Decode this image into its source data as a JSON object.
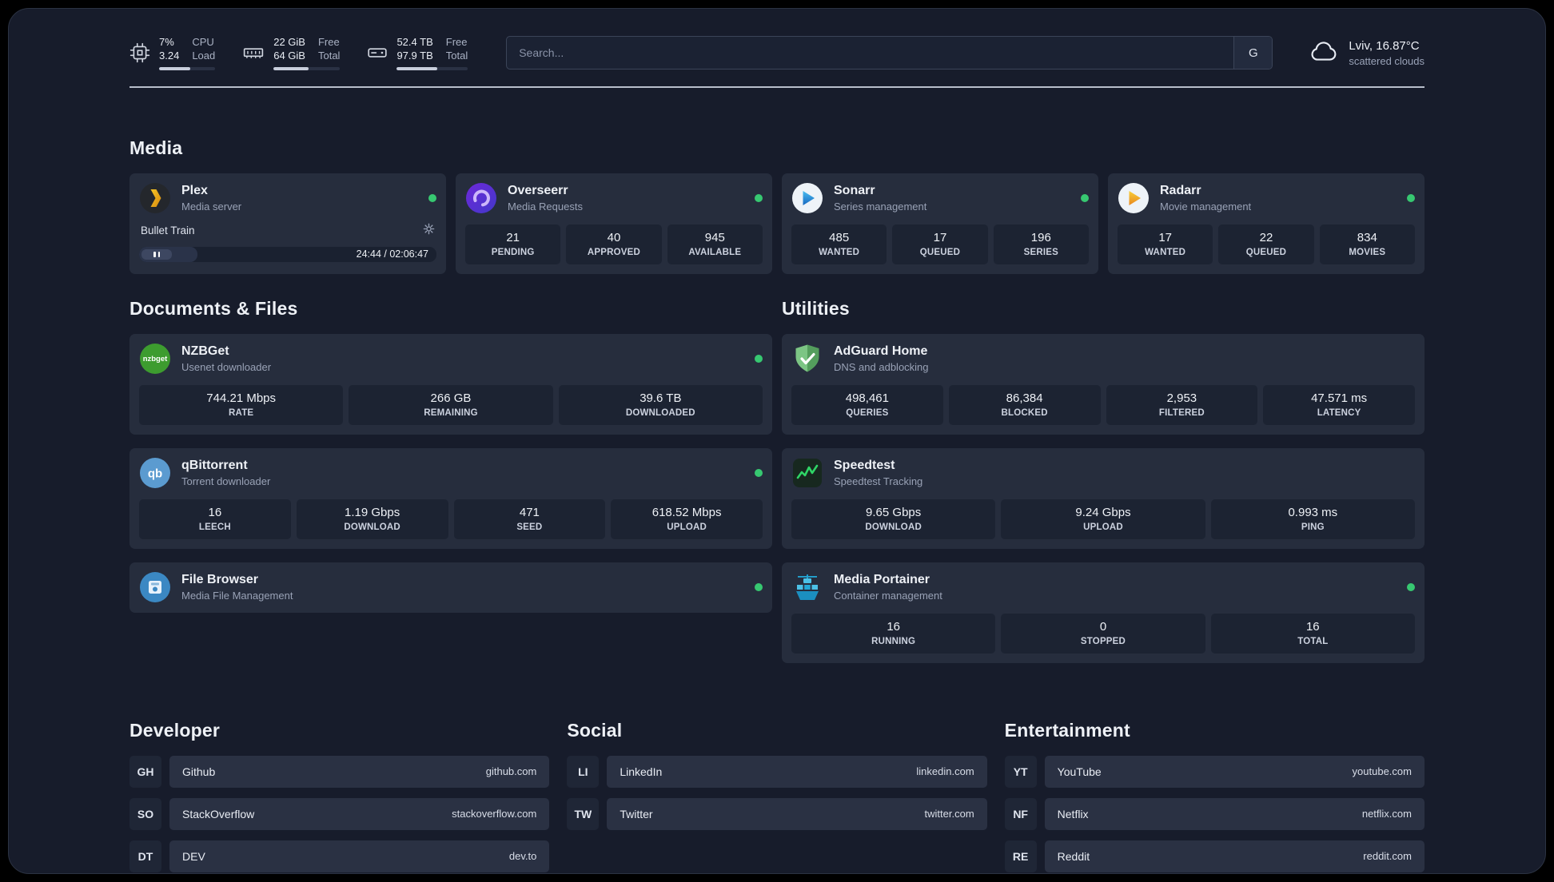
{
  "topbar": {
    "cpu": {
      "value_top": "7%",
      "value_bottom": "3.24",
      "label_top": "CPU",
      "label_bottom": "Load",
      "bar_percent": 55
    },
    "ram": {
      "value_top": "22 GiB",
      "value_bottom": "64 GiB",
      "label_top": "Free",
      "label_bottom": "Total",
      "bar_percent": 52
    },
    "disk": {
      "value_top": "52.4 TB",
      "value_bottom": "97.9 TB",
      "label_top": "Free",
      "label_bottom": "Total",
      "bar_percent": 57
    },
    "search": {
      "placeholder": "Search...",
      "button_label": "G"
    },
    "weather": {
      "location": "Lviv, 16.87°C",
      "condition": "scattered clouds"
    }
  },
  "sections": {
    "media": {
      "title": "Media",
      "cards": [
        {
          "name": "Plex",
          "subtitle": "Media server",
          "online": true,
          "player": {
            "title": "Bullet Train",
            "time": "24:44 / 02:06:47",
            "progress_percent": 19.5
          }
        },
        {
          "name": "Overseerr",
          "subtitle": "Media Requests",
          "online": true,
          "stats": [
            {
              "value": "21",
              "label": "PENDING"
            },
            {
              "value": "40",
              "label": "APPROVED"
            },
            {
              "value": "945",
              "label": "AVAILABLE"
            }
          ]
        },
        {
          "name": "Sonarr",
          "subtitle": "Series management",
          "online": true,
          "stats": [
            {
              "value": "485",
              "label": "WANTED"
            },
            {
              "value": "17",
              "label": "QUEUED"
            },
            {
              "value": "196",
              "label": "SERIES"
            }
          ]
        },
        {
          "name": "Radarr",
          "subtitle": "Movie management",
          "online": true,
          "stats": [
            {
              "value": "17",
              "label": "WANTED"
            },
            {
              "value": "22",
              "label": "QUEUED"
            },
            {
              "value": "834",
              "label": "MOVIES"
            }
          ]
        }
      ]
    },
    "documents": {
      "title": "Documents & Files",
      "cards": [
        {
          "name": "NZBGet",
          "subtitle": "Usenet downloader",
          "online": true,
          "stats": [
            {
              "value": "744.21 Mbps",
              "label": "RATE"
            },
            {
              "value": "266 GB",
              "label": "REMAINING"
            },
            {
              "value": "39.6 TB",
              "label": "DOWNLOADED"
            }
          ]
        },
        {
          "name": "qBittorrent",
          "subtitle": "Torrent downloader",
          "online": true,
          "stats": [
            {
              "value": "16",
              "label": "LEECH"
            },
            {
              "value": "1.19 Gbps",
              "label": "DOWNLOAD"
            },
            {
              "value": "471",
              "label": "SEED"
            },
            {
              "value": "618.52 Mbps",
              "label": "UPLOAD"
            }
          ]
        },
        {
          "name": "File Browser",
          "subtitle": "Media File Management",
          "online": true,
          "stats": []
        }
      ]
    },
    "utilities": {
      "title": "Utilities",
      "cards": [
        {
          "name": "AdGuard Home",
          "subtitle": "DNS and adblocking",
          "online": false,
          "stats": [
            {
              "value": "498,461",
              "label": "QUERIES"
            },
            {
              "value": "86,384",
              "label": "BLOCKED"
            },
            {
              "value": "2,953",
              "label": "FILTERED"
            },
            {
              "value": "47.571 ms",
              "label": "LATENCY"
            }
          ]
        },
        {
          "name": "Speedtest",
          "subtitle": "Speedtest Tracking",
          "online": false,
          "stats": [
            {
              "value": "9.65 Gbps",
              "label": "DOWNLOAD"
            },
            {
              "value": "9.24 Gbps",
              "label": "UPLOAD"
            },
            {
              "value": "0.993 ms",
              "label": "PING"
            }
          ]
        },
        {
          "name": "Media Portainer",
          "subtitle": "Container management",
          "online": true,
          "stats": [
            {
              "value": "16",
              "label": "RUNNING"
            },
            {
              "value": "0",
              "label": "STOPPED"
            },
            {
              "value": "16",
              "label": "TOTAL"
            }
          ]
        }
      ]
    }
  },
  "bookmarks": [
    {
      "title": "Developer",
      "items": [
        {
          "abbr": "GH",
          "name": "Github",
          "url": "github.com"
        },
        {
          "abbr": "SO",
          "name": "StackOverflow",
          "url": "stackoverflow.com"
        },
        {
          "abbr": "DT",
          "name": "DEV",
          "url": "dev.to"
        }
      ]
    },
    {
      "title": "Social",
      "items": [
        {
          "abbr": "LI",
          "name": "LinkedIn",
          "url": "linkedin.com"
        },
        {
          "abbr": "TW",
          "name": "Twitter",
          "url": "twitter.com"
        }
      ]
    },
    {
      "title": "Entertainment",
      "items": [
        {
          "abbr": "YT",
          "name": "YouTube",
          "url": "youtube.com"
        },
        {
          "abbr": "NF",
          "name": "Netflix",
          "url": "netflix.com"
        },
        {
          "abbr": "RE",
          "name": "Reddit",
          "url": "reddit.com"
        }
      ]
    }
  ],
  "colors": {
    "page_background": "#171c2b",
    "card_background": "#262d3d",
    "status_online": "#37c871",
    "plex_gold": "#e5a00d",
    "overseerr_purple": "#5d3ec1",
    "sonarr_blue": "#35c5f4",
    "radarr_gold": "#f7c23a",
    "nzbget_green": "#3d9c2f",
    "qbittorrent_blue": "#5b9bd0",
    "filebrowser_blue": "#3b88c3",
    "adguard_green": "#68b573",
    "speedtest_green": "#2fd566",
    "portainer_blue": "#22a7d6"
  }
}
